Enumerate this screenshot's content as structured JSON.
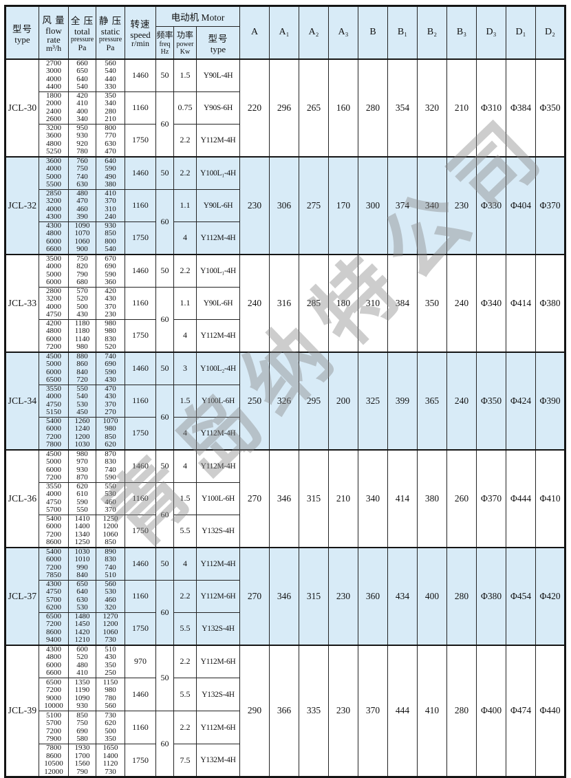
{
  "page": {
    "background": "#ffffff"
  },
  "colors": {
    "band": "#d8ebf7",
    "border": "#1a1a1a",
    "text": "#111111",
    "watermark": "#888888"
  },
  "watermark": "青岛纳特公司",
  "header": {
    "type": {
      "lines": [
        "型号",
        "type"
      ]
    },
    "flow": {
      "lines": [
        "风 量",
        "flow",
        "rate",
        "m³/h"
      ]
    },
    "total": {
      "lines": [
        "全 压",
        "total",
        "pressure",
        "Pa"
      ]
    },
    "static": {
      "lines": [
        "静 压",
        "static",
        "pressure",
        "Pa"
      ]
    },
    "speed": {
      "lines": [
        "转速",
        "speed",
        "r/min"
      ]
    },
    "motor_group": "电动机 Motor",
    "freq": {
      "lines": [
        "频率",
        "freq",
        "Hz"
      ]
    },
    "power": {
      "lines": [
        "功率",
        "power",
        "Kw"
      ]
    },
    "motor": {
      "lines": [
        "型号",
        "type"
      ]
    },
    "dims": [
      "A",
      "A₁",
      "A₂",
      "A₃",
      "B",
      "B₁",
      "B₂",
      "B₃",
      "D₃",
      "D₁",
      "D₂"
    ]
  },
  "models": [
    {
      "model": "JCL-30",
      "shaded": false,
      "tall": false,
      "freqs": [
        {
          "value": "50",
          "span": 1
        },
        {
          "value": "60",
          "span": 2
        }
      ],
      "groups": [
        {
          "flow": [
            "2700",
            "3000",
            "4000",
            "4400"
          ],
          "total": [
            "660",
            "650",
            "640",
            "540"
          ],
          "static": [
            "560",
            "540",
            "440",
            "330"
          ],
          "speed": "1460",
          "power": "1.5",
          "motor": "Y90L-4H"
        },
        {
          "flow": [
            "1800",
            "2000",
            "2400",
            "2600"
          ],
          "total": [
            "420",
            "410",
            "400",
            "340"
          ],
          "static": [
            "350",
            "340",
            "280",
            "210"
          ],
          "speed": "1160",
          "power": "0.75",
          "motor": "Y90S-6H"
        },
        {
          "flow": [
            "3200",
            "3600",
            "4800",
            "5250"
          ],
          "total": [
            "950",
            "930",
            "920",
            "780"
          ],
          "static": [
            "800",
            "770",
            "630",
            "470"
          ],
          "speed": "1750",
          "power": "2.2",
          "motor": "Y112M-4H"
        }
      ],
      "dims": [
        "220",
        "296",
        "265",
        "160",
        "280",
        "354",
        "320",
        "210",
        "Φ310",
        "Φ384",
        "Φ350"
      ]
    },
    {
      "model": "JCL-32",
      "shaded": true,
      "tall": false,
      "freqs": [
        {
          "value": "50",
          "span": 1
        },
        {
          "value": "60",
          "span": 2
        }
      ],
      "groups": [
        {
          "flow": [
            "3600",
            "4000",
            "5000",
            "5500"
          ],
          "total": [
            "760",
            "750",
            "740",
            "630"
          ],
          "static": [
            "640",
            "590",
            "490",
            "380"
          ],
          "speed": "1460",
          "power": "2.2",
          "motor": "Y100L₁-4H"
        },
        {
          "flow": [
            "2850",
            "3200",
            "4000",
            "4300"
          ],
          "total": [
            "480",
            "470",
            "460",
            "390"
          ],
          "static": [
            "410",
            "370",
            "310",
            "240"
          ],
          "speed": "1160",
          "power": "1.1",
          "motor": "Y90L-6H"
        },
        {
          "flow": [
            "4300",
            "4800",
            "6000",
            "6600"
          ],
          "total": [
            "1090",
            "1070",
            "1060",
            "900"
          ],
          "static": [
            "930",
            "850",
            "800",
            "540"
          ],
          "speed": "1750",
          "power": "4",
          "motor": "Y112M-4H"
        }
      ],
      "dims": [
        "230",
        "306",
        "275",
        "170",
        "300",
        "374",
        "340",
        "230",
        "Φ330",
        "Φ404",
        "Φ370"
      ]
    },
    {
      "model": "JCL-33",
      "shaded": false,
      "tall": false,
      "freqs": [
        {
          "value": "50",
          "span": 1
        },
        {
          "value": "60",
          "span": 2
        }
      ],
      "groups": [
        {
          "flow": [
            "3500",
            "4000",
            "5000",
            "6000"
          ],
          "total": [
            "750",
            "820",
            "790",
            "680"
          ],
          "static": [
            "670",
            "690",
            "590",
            "360"
          ],
          "speed": "1460",
          "power": "2.2",
          "motor": "Y100L₁-4H"
        },
        {
          "flow": [
            "2800",
            "3200",
            "4000",
            "4750"
          ],
          "total": [
            "570",
            "520",
            "500",
            "430"
          ],
          "static": [
            "420",
            "430",
            "370",
            "230"
          ],
          "speed": "1160",
          "power": "1.1",
          "motor": "Y90L-6H"
        },
        {
          "flow": [
            "4200",
            "4800",
            "6000",
            "7200"
          ],
          "total": [
            "1180",
            "1180",
            "1140",
            "980"
          ],
          "static": [
            "980",
            "980",
            "830",
            "520"
          ],
          "speed": "1750",
          "power": "4",
          "motor": "Y112M-4H"
        }
      ],
      "dims": [
        "240",
        "316",
        "285",
        "180",
        "310",
        "384",
        "350",
        "240",
        "Φ340",
        "Φ414",
        "Φ380"
      ]
    },
    {
      "model": "JCL-34",
      "shaded": true,
      "tall": false,
      "freqs": [
        {
          "value": "50",
          "span": 1
        },
        {
          "value": "60",
          "span": 2
        }
      ],
      "groups": [
        {
          "flow": [
            "4500",
            "5000",
            "6000",
            "6500"
          ],
          "total": [
            "880",
            "860",
            "840",
            "720"
          ],
          "static": [
            "740",
            "690",
            "590",
            "430"
          ],
          "speed": "1460",
          "power": "3",
          "motor": "Y100L₂-4H"
        },
        {
          "flow": [
            "3550",
            "4000",
            "4750",
            "5150"
          ],
          "total": [
            "550",
            "540",
            "530",
            "450"
          ],
          "static": [
            "470",
            "430",
            "370",
            "270"
          ],
          "speed": "1160",
          "power": "1.5",
          "motor": "Y100L-6H"
        },
        {
          "flow": [
            "5400",
            "6000",
            "7200",
            "7800"
          ],
          "total": [
            "1260",
            "1240",
            "1200",
            "1030"
          ],
          "static": [
            "1070",
            "980",
            "850",
            "620"
          ],
          "speed": "1750",
          "power": "4",
          "motor": "Y112M-4H"
        }
      ],
      "dims": [
        "250",
        "326",
        "295",
        "200",
        "325",
        "399",
        "365",
        "240",
        "Φ350",
        "Φ424",
        "Φ390"
      ]
    },
    {
      "model": "JCL-36",
      "shaded": false,
      "tall": false,
      "freqs": [
        {
          "value": "50",
          "span": 1
        },
        {
          "value": "60",
          "span": 2
        }
      ],
      "groups": [
        {
          "flow": [
            "4500",
            "5000",
            "6000",
            "7200"
          ],
          "total": [
            "980",
            "970",
            "930",
            "870"
          ],
          "static": [
            "870",
            "830",
            "740",
            "590"
          ],
          "speed": "1460",
          "power": "4",
          "motor": "Y112M-4H"
        },
        {
          "flow": [
            "3550",
            "4000",
            "4750",
            "5700"
          ],
          "total": [
            "620",
            "610",
            "590",
            "550"
          ],
          "static": [
            "550",
            "530",
            "460",
            "370"
          ],
          "speed": "1160",
          "power": "1.5",
          "motor": "Y100L-6H"
        },
        {
          "flow": [
            "5400",
            "6000",
            "7200",
            "8600"
          ],
          "total": [
            "1410",
            "1400",
            "1340",
            "1250"
          ],
          "static": [
            "1250",
            "1200",
            "1060",
            "850"
          ],
          "speed": "1750",
          "power": "5.5",
          "motor": "Y132S-4H"
        }
      ],
      "dims": [
        "270",
        "346",
        "315",
        "210",
        "340",
        "414",
        "380",
        "260",
        "Φ370",
        "Φ444",
        "Φ410"
      ]
    },
    {
      "model": "JCL-37",
      "shaded": true,
      "tall": false,
      "freqs": [
        {
          "value": "50",
          "span": 1
        },
        {
          "value": "60",
          "span": 2
        }
      ],
      "groups": [
        {
          "flow": [
            "5400",
            "6000",
            "7200",
            "7850"
          ],
          "total": [
            "1030",
            "1010",
            "990",
            "840"
          ],
          "static": [
            "890",
            "830",
            "740",
            "510"
          ],
          "speed": "1460",
          "power": "4",
          "motor": "Y112M-4H"
        },
        {
          "flow": [
            "4300",
            "4750",
            "5700",
            "6200"
          ],
          "total": [
            "650",
            "640",
            "630",
            "530"
          ],
          "static": [
            "560",
            "530",
            "460",
            "320"
          ],
          "speed": "1160",
          "power": "2.2",
          "motor": "Y112M-6H"
        },
        {
          "flow": [
            "6500",
            "7200",
            "8600",
            "9400"
          ],
          "total": [
            "1480",
            "1450",
            "1420",
            "1210"
          ],
          "static": [
            "1270",
            "1200",
            "1060",
            "730"
          ],
          "speed": "1750",
          "power": "5.5",
          "motor": "Y132S-4H"
        }
      ],
      "dims": [
        "270",
        "346",
        "315",
        "230",
        "360",
        "434",
        "400",
        "280",
        "Φ380",
        "Φ454",
        "Φ420"
      ]
    },
    {
      "model": "JCL-39",
      "shaded": false,
      "tall": true,
      "freqs": [
        {
          "value": "50",
          "span": 2
        },
        {
          "value": "60",
          "span": 2
        }
      ],
      "groups": [
        {
          "flow": [
            "4300",
            "4800",
            "6000",
            "6600"
          ],
          "total": [
            "600",
            "520",
            "480",
            "410"
          ],
          "static": [
            "510",
            "430",
            "350",
            "250"
          ],
          "speed": "970",
          "power": "2.2",
          "motor": "Y112M-6H"
        },
        {
          "flow": [
            "6500",
            "7200",
            "9000",
            "10000"
          ],
          "total": [
            "1350",
            "1190",
            "1090",
            "930"
          ],
          "static": [
            "1150",
            "980",
            "780",
            "560"
          ],
          "speed": "1460",
          "power": "5.5",
          "motor": "Y132S-4H"
        },
        {
          "flow": [
            "5100",
            "5700",
            "7200",
            "7900"
          ],
          "total": [
            "850",
            "750",
            "690",
            "580"
          ],
          "static": [
            "730",
            "620",
            "500",
            "350"
          ],
          "speed": "1160",
          "power": "2.2",
          "motor": "Y112M-6H"
        },
        {
          "flow": [
            "7800",
            "8600",
            "10500",
            "12000"
          ],
          "total": [
            "1930",
            "1700",
            "1560",
            "790"
          ],
          "static": [
            "1650",
            "1400",
            "1120",
            "730"
          ],
          "speed": "1750",
          "power": "7.5",
          "motor": "Y132M-4H"
        }
      ],
      "dims": [
        "290",
        "366",
        "335",
        "230",
        "370",
        "444",
        "410",
        "280",
        "Φ400",
        "Φ474",
        "Φ440"
      ]
    }
  ]
}
